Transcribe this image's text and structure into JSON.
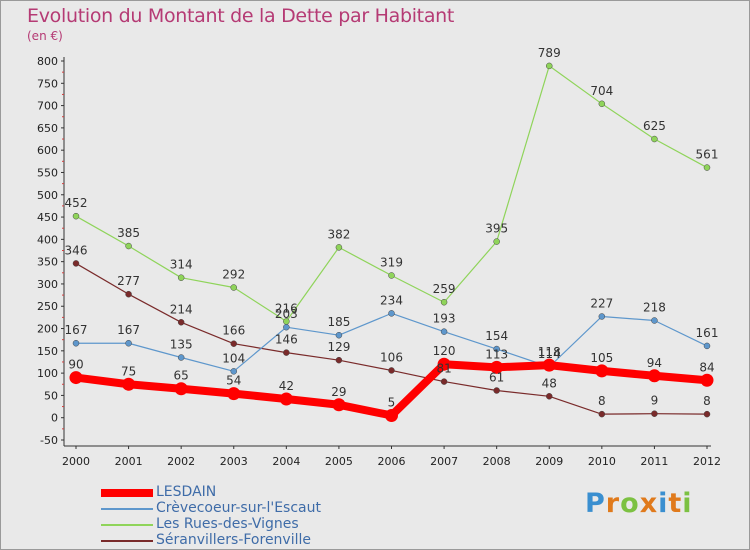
{
  "chart": {
    "title": "Evolution du Montant de la Dette par Habitant",
    "unit": "(en €)"
  },
  "logo": {
    "text": "Proxiti",
    "letter_colors": [
      "#3a8fd0",
      "#e07a1c",
      "#7cc142",
      "#e07a1c",
      "#3a8fd0",
      "#e07a1c",
      "#7cc142"
    ]
  },
  "chart_data": {
    "type": "line",
    "title": "Evolution du Montant de la Dette par Habitant",
    "subtitle": "(en €)",
    "xlabel": "",
    "ylabel": "",
    "x": [
      "2000",
      "2001",
      "2002",
      "2003",
      "2004",
      "2005",
      "2006",
      "2007",
      "2008",
      "2009",
      "2010",
      "2011",
      "2012"
    ],
    "ylim": [
      -50,
      800
    ],
    "yticks": [
      -50,
      0,
      50,
      100,
      150,
      200,
      250,
      300,
      350,
      400,
      450,
      500,
      550,
      600,
      650,
      700,
      750,
      800
    ],
    "grid": false,
    "legend_position": "bottom-left",
    "series": [
      {
        "name": "Séranvillers-Forenville",
        "color": "#7a2b2b",
        "values": [
          346,
          277,
          214,
          166,
          146,
          129,
          106,
          81,
          61,
          48,
          8,
          9,
          8
        ]
      },
      {
        "name": "Crèvecoeur-sur-l'Escaut",
        "color": "#5e97cc",
        "values": [
          167,
          167,
          135,
          104,
          203,
          185,
          234,
          193,
          154,
          114,
          227,
          218,
          161
        ]
      },
      {
        "name": "Les Rues-des-Vignes",
        "color": "#8fd45a",
        "values": [
          452,
          385,
          314,
          292,
          216,
          382,
          319,
          259,
          395,
          789,
          704,
          625,
          561
        ]
      },
      {
        "name": "LESDAIN",
        "color": "#ff0000",
        "values": [
          90,
          75,
          65,
          54,
          42,
          29,
          5,
          120,
          113,
          118,
          105,
          94,
          84
        ]
      }
    ],
    "legend_order": [
      "LESDAIN",
      "Crèvecoeur-sur-l'Escaut",
      "Les Rues-des-Vignes",
      "Séranvillers-Forenville"
    ]
  }
}
